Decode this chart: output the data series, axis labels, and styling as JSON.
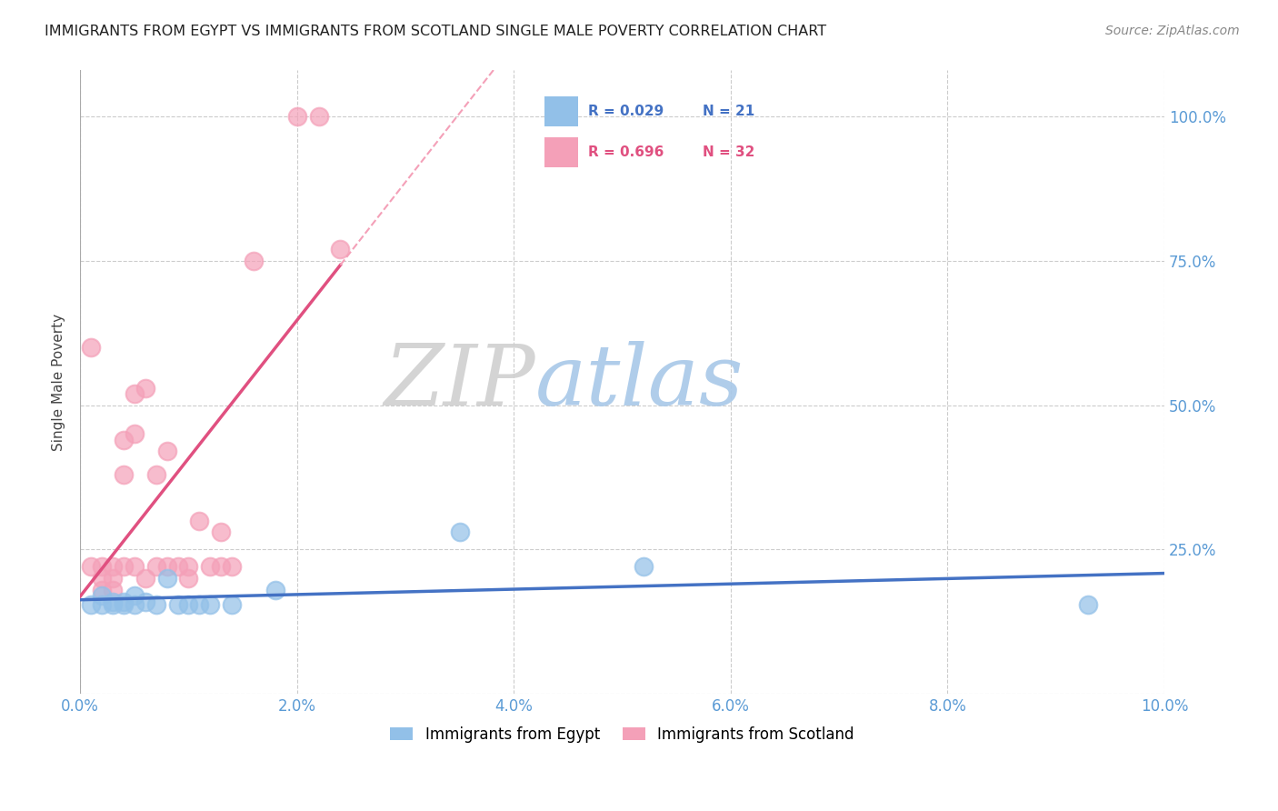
{
  "title": "IMMIGRANTS FROM EGYPT VS IMMIGRANTS FROM SCOTLAND SINGLE MALE POVERTY CORRELATION CHART",
  "source": "Source: ZipAtlas.com",
  "ylabel": "Single Male Poverty",
  "xlim": [
    0.0,
    0.1
  ],
  "ylim": [
    0.0,
    1.08
  ],
  "xticks": [
    0.0,
    0.02,
    0.04,
    0.06,
    0.08,
    0.1
  ],
  "xtick_labels": [
    "0.0%",
    "2.0%",
    "4.0%",
    "6.0%",
    "8.0%",
    "10.0%"
  ],
  "yticks": [
    0.0,
    0.25,
    0.5,
    0.75,
    1.0
  ],
  "ytick_labels_right": [
    "",
    "25.0%",
    "50.0%",
    "75.0%",
    "100.0%"
  ],
  "legend_egypt": "Immigrants from Egypt",
  "legend_scotland": "Immigrants from Scotland",
  "color_egypt": "#92c0e8",
  "color_scotland": "#f4a0b8",
  "line_color_egypt": "#4472c4",
  "line_color_scotland": "#e05080",
  "watermark_zip": "ZIP",
  "watermark_atlas": "atlas",
  "watermark_color_zip": "#d0d0d0",
  "watermark_color_atlas": "#a8c8e8",
  "bg_color": "#ffffff",
  "egypt_x": [
    0.001,
    0.002,
    0.002,
    0.003,
    0.003,
    0.004,
    0.004,
    0.005,
    0.005,
    0.006,
    0.007,
    0.008,
    0.009,
    0.01,
    0.011,
    0.012,
    0.014,
    0.018,
    0.035,
    0.052,
    0.093
  ],
  "egypt_y": [
    0.155,
    0.17,
    0.155,
    0.155,
    0.16,
    0.155,
    0.16,
    0.17,
    0.155,
    0.16,
    0.155,
    0.2,
    0.155,
    0.155,
    0.155,
    0.155,
    0.155,
    0.18,
    0.28,
    0.22,
    0.155
  ],
  "scotland_x": [
    0.001,
    0.001,
    0.002,
    0.002,
    0.002,
    0.003,
    0.003,
    0.003,
    0.004,
    0.004,
    0.004,
    0.005,
    0.005,
    0.005,
    0.006,
    0.006,
    0.007,
    0.007,
    0.008,
    0.008,
    0.009,
    0.01,
    0.01,
    0.011,
    0.012,
    0.013,
    0.013,
    0.014,
    0.016,
    0.02,
    0.022,
    0.024
  ],
  "scotland_y": [
    0.6,
    0.22,
    0.2,
    0.18,
    0.22,
    0.22,
    0.2,
    0.18,
    0.44,
    0.38,
    0.22,
    0.52,
    0.45,
    0.22,
    0.53,
    0.2,
    0.38,
    0.22,
    0.42,
    0.22,
    0.22,
    0.22,
    0.2,
    0.3,
    0.22,
    0.28,
    0.22,
    0.22,
    0.75,
    1.0,
    1.0,
    0.77
  ],
  "legend_R_egypt_color": "#4472c4",
  "legend_R_scotland_color": "#e05080",
  "legend_N_egypt_color": "#4472c4",
  "legend_N_scotland_color": "#e05080"
}
